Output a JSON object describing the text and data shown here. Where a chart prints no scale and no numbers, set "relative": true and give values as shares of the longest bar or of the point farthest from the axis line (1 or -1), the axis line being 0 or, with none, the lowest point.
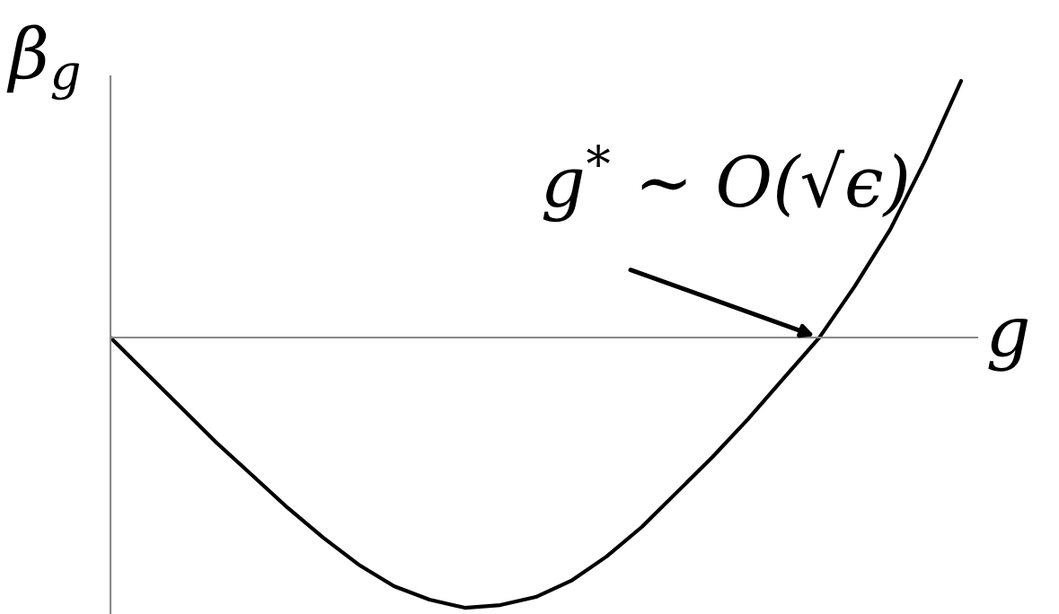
{
  "chart_data": {
    "type": "line",
    "relative": true,
    "xlabel": "g",
    "ylabel": "β$_{g}$",
    "categories": [
      null,
      null,
      null,
      null,
      null,
      null,
      null,
      null,
      null,
      null,
      null,
      null,
      null,
      null,
      null,
      null,
      null,
      null,
      null,
      null,
      null,
      null,
      null,
      null,
      null
    ],
    "series": [
      {
        "color": "#000000",
        "values": [
          0,
          -0.13,
          -0.26,
          -0.39,
          -0.51,
          -0.63,
          -0.74,
          -0.84,
          -0.92,
          -0.97,
          -1.0,
          -0.99,
          -0.96,
          -0.9,
          -0.81,
          -0.7,
          -0.57,
          -0.44,
          -0.3,
          -0.15,
          0,
          0.19,
          0.4,
          0.66,
          0.95
        ]
      }
    ],
    "annotations": [
      "g$^{*}$ ∼ O(√ϵ)"
    ],
    "tick_labels": false,
    "legend": false,
    "marker": "none",
    "line_style": "solid"
  }
}
